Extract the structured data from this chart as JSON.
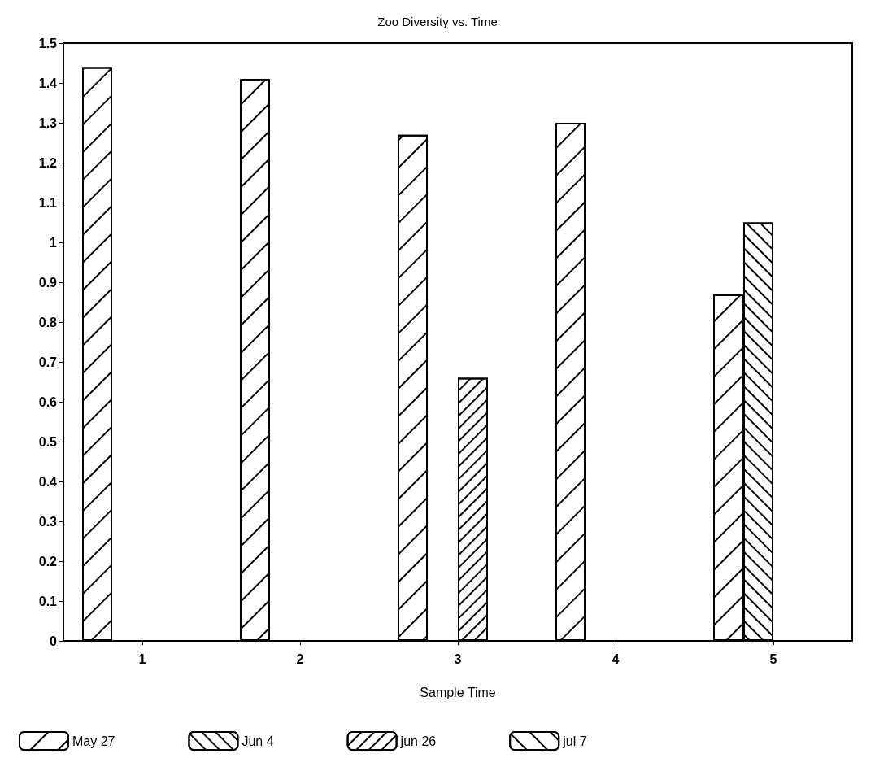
{
  "chart_data": {
    "type": "bar",
    "title": "Zoo Diversity vs. Time",
    "xlabel": "Sample Time",
    "categories": [
      "1",
      "2",
      "3",
      "4",
      "5"
    ],
    "series": [
      {
        "name": "May 27",
        "color": "#ffffff",
        "values": [
          1.44,
          1.41,
          1.27,
          1.3,
          0.87
        ]
      },
      {
        "name": "Jun 4",
        "color": "#ffffff",
        "values": [
          null,
          null,
          null,
          null,
          1.05
        ]
      },
      {
        "name": "jun 26",
        "color": "#ffffff",
        "values": [
          null,
          null,
          0.66,
          null,
          null
        ]
      },
      {
        "name": "jul 7",
        "color": "#ffffff",
        "values": [
          null,
          null,
          null,
          null,
          null
        ]
      }
    ],
    "ylim": [
      0,
      1.5
    ],
    "yticks": [
      0,
      0.1,
      0.2,
      0.3,
      0.4,
      0.5,
      0.6,
      0.7,
      0.8,
      0.9,
      1,
      1.1,
      1.2,
      1.3,
      1.4,
      1.5
    ],
    "grid": false,
    "legend": "bottom"
  }
}
